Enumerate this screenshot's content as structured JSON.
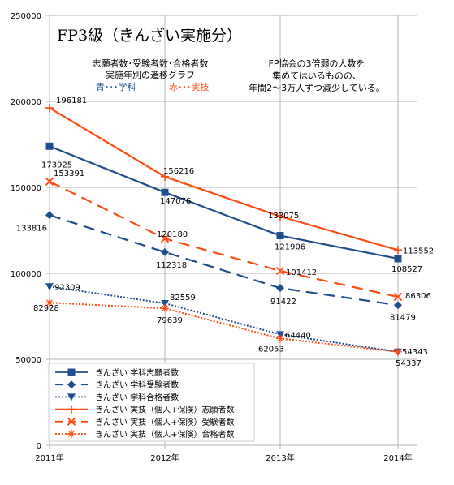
{
  "chart_data": {
    "type": "line",
    "title": "FP3級（きんざい実施分）",
    "annotations": {
      "subtitle_lines": [
        "志願者数･受験者数･合格者数",
        "実施年別の遷移グラフ"
      ],
      "legend_note_blue": "青･･･学科",
      "legend_note_red": "赤･･･実技",
      "comment_lines": [
        "FP協会の3倍弱の人数を",
        "集めてはいるものの、",
        "年間2～3万人ずつ減少している。"
      ]
    },
    "categories": [
      "2011年",
      "2012年",
      "2013年",
      "2014年"
    ],
    "y_ticks": [
      "0",
      "50000",
      "100000",
      "150000",
      "200000",
      "250000"
    ],
    "ylim": [
      0,
      250000
    ],
    "grid": true,
    "legend_position": "bottom-left",
    "colors": {
      "blue": "#1f4e8c",
      "red": "#ff4a10"
    },
    "series": [
      {
        "name": "きんざい 学科志願者数",
        "values": [
          173925,
          147076,
          121906,
          108527
        ],
        "color": "#1f4e8c",
        "dash": "solid",
        "marker": "square"
      },
      {
        "name": "きんざい 学科受験者数",
        "values": [
          133816,
          112318,
          91422,
          81479
        ],
        "color": "#1f4e8c",
        "dash": "long",
        "marker": "diamond"
      },
      {
        "name": "きんざい 学科合格者数",
        "values": [
          92309,
          82559,
          64440,
          54343
        ],
        "color": "#1f4e8c",
        "dash": "dot",
        "marker": "triangle"
      },
      {
        "name": "きんざい 実技（個人+保険）志願者数",
        "values": [
          196181,
          156216,
          133075,
          113552
        ],
        "color": "#ff4a10",
        "dash": "solid",
        "marker": "plus"
      },
      {
        "name": "きんざい 実技（個人+保険）受験者数",
        "values": [
          153391,
          120180,
          101412,
          86306
        ],
        "color": "#ff4a10",
        "dash": "long",
        "marker": "x"
      },
      {
        "name": "きんざい 実技（個人+保険）合格者数",
        "values": [
          82928,
          79639,
          62053,
          54337
        ],
        "color": "#ff4a10",
        "dash": "dot",
        "marker": "star"
      }
    ],
    "data_labels": [
      [
        "173925",
        "147076",
        "121906",
        "108527"
      ],
      [
        "133816",
        "112318",
        "91422",
        "81479"
      ],
      [
        "92309",
        "82559",
        "64440",
        "54343"
      ],
      [
        "196181",
        "156216",
        "133075",
        "113552"
      ],
      [
        "153391",
        "120180",
        "101412",
        "86306"
      ],
      [
        "82928",
        "79639",
        "62053",
        "54337"
      ]
    ]
  }
}
